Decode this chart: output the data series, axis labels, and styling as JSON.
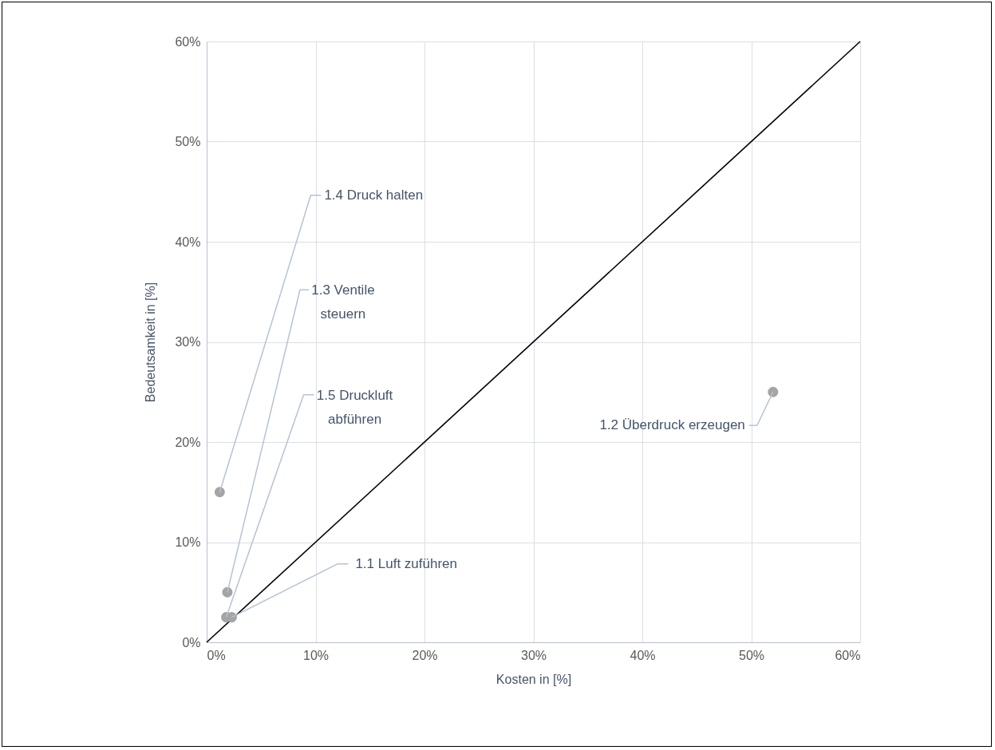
{
  "chart_data": {
    "type": "scatter",
    "xlabel": "Kosten in [%]",
    "ylabel": "Bedeutsamkeit in [%]",
    "xlim": [
      0,
      60
    ],
    "ylim": [
      0,
      60
    ],
    "xticks": [
      {
        "value": 0,
        "label": "0%"
      },
      {
        "value": 10,
        "label": "10%"
      },
      {
        "value": 20,
        "label": "20%"
      },
      {
        "value": 30,
        "label": "30%"
      },
      {
        "value": 40,
        "label": "40%"
      },
      {
        "value": 50,
        "label": "50%"
      },
      {
        "value": 60,
        "label": "60%"
      }
    ],
    "yticks": [
      {
        "value": 0,
        "label": "0%"
      },
      {
        "value": 10,
        "label": "10%"
      },
      {
        "value": 20,
        "label": "20%"
      },
      {
        "value": 30,
        "label": "30%"
      },
      {
        "value": 40,
        "label": "40%"
      },
      {
        "value": 50,
        "label": "50%"
      },
      {
        "value": 60,
        "label": "60%"
      }
    ],
    "grid": true,
    "marker": "circle",
    "series": [
      {
        "type": "scatter",
        "color": "#a5a5a5",
        "x": [
          1.2,
          1.9,
          1.8,
          2.3,
          52
        ],
        "values": [
          15,
          5,
          2.5,
          2.5,
          25
        ]
      },
      {
        "type": "line",
        "color": "#000000",
        "x": [
          0,
          60
        ],
        "values": [
          0,
          60
        ],
        "marker": "none",
        "line_style": "solid"
      }
    ],
    "annotations": [
      {
        "text": "1.4 Druck halten",
        "x": 1.2,
        "y": 15
      },
      {
        "text": "1.3 Ventile steuern",
        "x": 1.9,
        "y": 5
      },
      {
        "text": "1.5 Druckluft abführen",
        "x": 1.8,
        "y": 2.5
      },
      {
        "text": "1.1 Luft zuführen",
        "x": 2.3,
        "y": 2.5
      },
      {
        "text": "1.2 Überdruck erzeugen",
        "x": 52,
        "y": 25
      }
    ]
  }
}
